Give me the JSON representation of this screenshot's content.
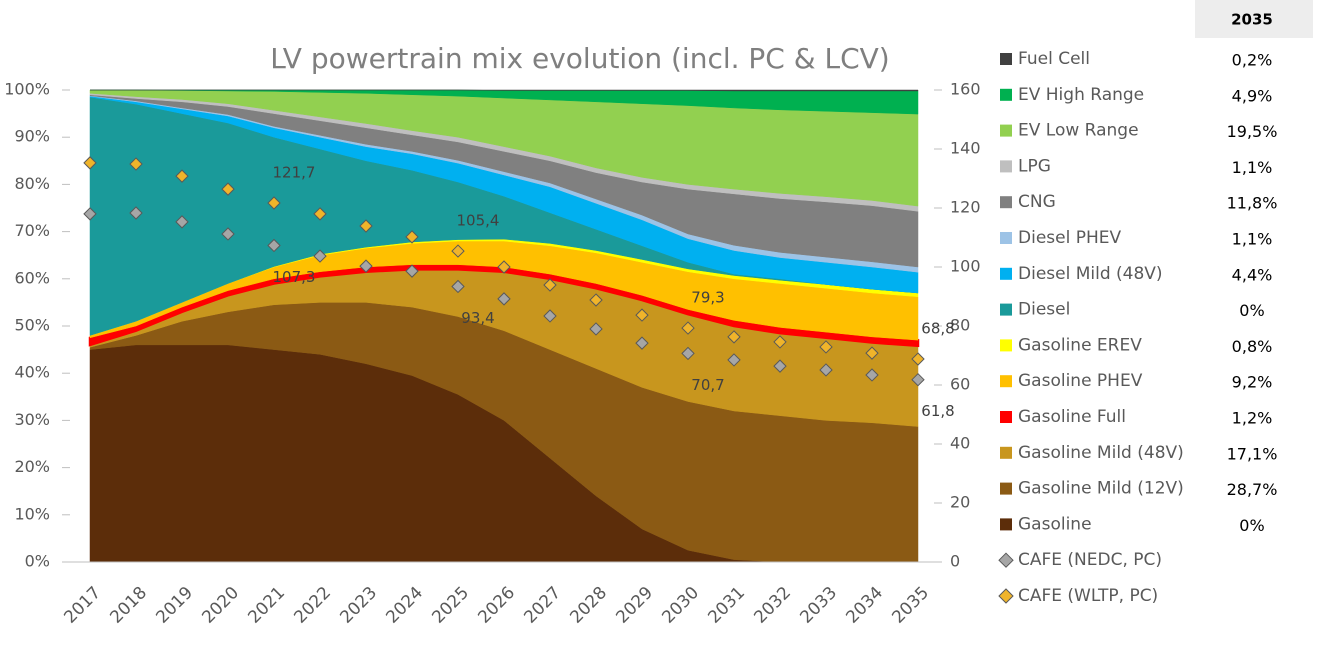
{
  "chart_data": {
    "type": "stacked-area",
    "title": "LV powertrain mix evolution (incl. PC & LCV)",
    "table_header": "2035",
    "categories": [
      "2017",
      "2018",
      "2019",
      "2020",
      "2021",
      "2022",
      "2023",
      "2024",
      "2025",
      "2026",
      "2027",
      "2028",
      "2029",
      "2030",
      "2031",
      "2032",
      "2033",
      "2034",
      "2035"
    ],
    "ylim": [
      0,
      100
    ],
    "yticks": [
      {
        "value": 0,
        "label": "0%"
      },
      {
        "value": 10,
        "label": "10%"
      },
      {
        "value": 20,
        "label": "20%"
      },
      {
        "value": 30,
        "label": "30%"
      },
      {
        "value": 40,
        "label": "40%"
      },
      {
        "value": 50,
        "label": "50%"
      },
      {
        "value": 60,
        "label": "60%"
      },
      {
        "value": 70,
        "label": "70%"
      },
      {
        "value": 80,
        "label": "80%"
      },
      {
        "value": 90,
        "label": "90%"
      },
      {
        "value": 100,
        "label": "100%"
      }
    ],
    "y2lim": [
      0,
      160
    ],
    "y2ticks": [
      0,
      20,
      40,
      60,
      80,
      100,
      120,
      140,
      160
    ],
    "series": [
      {
        "name": "Gasoline",
        "color": "#5c2d0a",
        "share_label": "0%",
        "values": [
          45,
          46,
          46,
          46,
          45,
          44,
          42,
          39.5,
          35.5,
          30,
          22,
          14,
          7,
          2.5,
          0.5,
          0,
          0,
          0,
          0
        ]
      },
      {
        "name": "Gasoline Mild (12V)",
        "color": "#8b5a14",
        "share_label": "28,7%",
        "values": [
          0.5,
          2,
          5,
          7,
          9.5,
          11,
          13,
          14.5,
          16.5,
          19,
          23,
          27,
          30,
          31.5,
          31.5,
          31,
          30,
          29.5,
          28.7
        ]
      },
      {
        "name": "Gasoline Mild (48V)",
        "color": "#c8961e",
        "share_label": "17,1%",
        "values": [
          0.5,
          1,
          2,
          3.5,
          4.5,
          5.5,
          6.5,
          8,
          10,
          12.5,
          15,
          17,
          18.5,
          18.5,
          18,
          17.5,
          17.5,
          17,
          17.1
        ]
      },
      {
        "name": "Gasoline Full",
        "color": "#ff0000",
        "share_label": "1,2%",
        "values": [
          1.5,
          1,
          1,
          1,
          1,
          1,
          1,
          1,
          1,
          1,
          1,
          1,
          1,
          1,
          1.2,
          1.2,
          1.2,
          1.2,
          1.2
        ]
      },
      {
        "name": "Gasoline PHEV",
        "color": "#ffc000",
        "share_label": "9,2%",
        "values": [
          0.5,
          1,
          1,
          1.5,
          2.5,
          3.5,
          4,
          4.5,
          5,
          5.5,
          6,
          6.5,
          7,
          8,
          8.8,
          9.3,
          9.3,
          9.3,
          9.2
        ]
      },
      {
        "name": "Gasoline EREV",
        "color": "#ffff00",
        "share_label": "0,8%",
        "values": [
          0,
          0,
          0,
          0,
          0.1,
          0.2,
          0.2,
          0.3,
          0.3,
          0.4,
          0.5,
          0.5,
          0.6,
          0.6,
          0.7,
          0.7,
          0.8,
          0.8,
          0.8
        ]
      },
      {
        "name": "Diesel",
        "color": "#1a9a9a",
        "share_label": "0%",
        "values": [
          50.5,
          46,
          40,
          34,
          27.4,
          22.3,
          18.3,
          15.2,
          12.2,
          9.1,
          6.5,
          4.5,
          2.9,
          1.4,
          0.3,
          0.3,
          0,
          0,
          0
        ]
      },
      {
        "name": "Diesel Mild (48V)",
        "color": "#00b0f0",
        "share_label": "4,4%",
        "values": [
          0.2,
          0.5,
          1,
          1.5,
          2,
          2.5,
          3,
          3.5,
          4,
          4.5,
          5.5,
          5.5,
          5.5,
          5,
          5,
          4.5,
          4.7,
          4.7,
          4.4
        ]
      },
      {
        "name": "Diesel PHEV",
        "color": "#9dc3e6",
        "share_label": "1,1%",
        "values": [
          0.1,
          0.2,
          0.2,
          0.3,
          0.3,
          0.4,
          0.5,
          0.5,
          0.6,
          0.7,
          0.8,
          0.9,
          1,
          1,
          1.1,
          1.1,
          1.1,
          1.1,
          1.1
        ]
      },
      {
        "name": "CNG",
        "color": "#808080",
        "share_label": "11,8%",
        "values": [
          0.2,
          0.5,
          1.3,
          1.7,
          2.7,
          3.1,
          3.5,
          3.5,
          3.9,
          4.3,
          4.7,
          5.6,
          7,
          9.5,
          10.9,
          11.4,
          11.7,
          11.9,
          11.8
        ]
      },
      {
        "name": "LPG",
        "color": "#bfbfbf",
        "share_label": "1,1%",
        "values": [
          0.3,
          0.4,
          0.5,
          0.6,
          0.7,
          0.8,
          0.9,
          0.9,
          1,
          1,
          1,
          1,
          1,
          1,
          1,
          1.1,
          1.1,
          1.1,
          1.1
        ]
      },
      {
        "name": "EV Low Range",
        "color": "#92d050",
        "share_label": "19,5%",
        "values": [
          0.7,
          1.4,
          1.9,
          2.7,
          4,
          5.2,
          6.4,
          7.6,
          8.7,
          10.3,
          11.9,
          14,
          15.6,
          16.7,
          17.2,
          17.7,
          18.1,
          18.6,
          19.5
        ]
      },
      {
        "name": "EV High Range",
        "color": "#00b050",
        "share_label": "4,9%",
        "values": [
          0,
          0,
          0.1,
          0.2,
          0.3,
          0.5,
          0.7,
          1,
          1.3,
          1.6,
          2,
          2.4,
          2.8,
          3.2,
          3.6,
          4,
          4.3,
          4.6,
          4.9
        ]
      },
      {
        "name": "Fuel Cell",
        "color": "#404040",
        "share_label": "0,2%",
        "values": [
          0,
          0,
          0,
          0,
          0,
          0,
          0,
          0,
          0,
          0.1,
          0.1,
          0.1,
          0.1,
          0.1,
          0.2,
          0.2,
          0.2,
          0.2,
          0.2
        ]
      }
    ],
    "markers": [
      {
        "name": "CAFE (NEDC, PC)",
        "color": "#a6a6a6",
        "axis": "y2",
        "label_side": "below",
        "values": [
          118,
          118.3,
          115.3,
          111.2,
          107.3,
          103.7,
          100.3,
          98.6,
          93.4,
          89.2,
          83.4,
          79,
          74.2,
          70.7,
          68.5,
          66.4,
          65.1,
          63.4,
          61.8
        ],
        "value_labels": [
          null,
          null,
          null,
          null,
          "107,3",
          null,
          null,
          null,
          "93,4",
          null,
          null,
          null,
          null,
          "70,7",
          null,
          null,
          null,
          null,
          "61,8"
        ]
      },
      {
        "name": "CAFE (WLTP, PC)",
        "color": "#f0b42a",
        "axis": "y2",
        "label_side": "above",
        "values": [
          135.3,
          134.9,
          130.8,
          126.4,
          121.7,
          118,
          113.9,
          110.2,
          105.4,
          100,
          93.9,
          88.8,
          83.7,
          79.3,
          76.3,
          74.6,
          72.9,
          70.8,
          68.8
        ],
        "value_labels": [
          null,
          null,
          null,
          null,
          "121,7",
          null,
          null,
          null,
          "105,4",
          null,
          null,
          null,
          null,
          "79,3",
          null,
          null,
          null,
          null,
          "68,8"
        ]
      }
    ]
  }
}
